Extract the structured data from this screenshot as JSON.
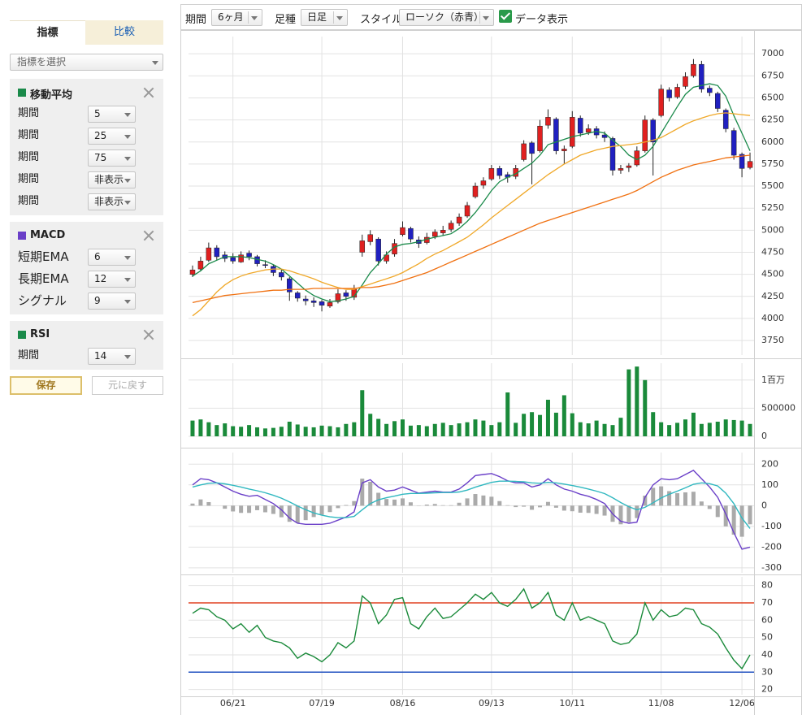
{
  "toolbar": {
    "period_label": "期間",
    "period": "6ヶ月",
    "bar_label": "足種",
    "bar": "日足",
    "style_label": "スタイル",
    "style": "ローソク（赤青）",
    "data_toggle": "データ表示"
  },
  "sidebar": {
    "tabs": [
      "指標",
      "比較"
    ],
    "select": "指標を選択",
    "sections": [
      {
        "title": "移動平均",
        "color": "#1a8a4a",
        "rows": [
          {
            "label": "期間",
            "value": 5
          },
          {
            "label": "期間",
            "value": 25
          },
          {
            "label": "期間",
            "value": 75
          },
          {
            "label": "期間",
            "value": "非表示"
          },
          {
            "label": "期間",
            "value": "非表示"
          }
        ]
      },
      {
        "title": "MACD",
        "color": "#6a3fc8",
        "rows": [
          {
            "label": "短期EMA",
            "value": 6
          },
          {
            "label": "長期EMA",
            "value": 12
          },
          {
            "label": "シグナル",
            "value": 9
          }
        ]
      },
      {
        "title": "RSI",
        "color": "#1a8a4a",
        "rows": [
          {
            "label": "期間",
            "value": 14
          }
        ]
      }
    ],
    "buttons": [
      "保存",
      "元に戻す"
    ]
  },
  "chart_data": [
    {
      "type": "candlestick",
      "up_color": "#e02020",
      "down_color": "#2020c0",
      "grid": true,
      "ylim": [
        3585,
        7195
      ],
      "yticks": [
        3750,
        4000,
        4250,
        4500,
        4750,
        5000,
        5250,
        5500,
        5750,
        6000,
        6250,
        6500,
        6750,
        7000
      ],
      "open": [
        4500,
        4560,
        4660,
        4800,
        4720,
        4690,
        4640,
        4740,
        4700,
        4610,
        4590,
        4520,
        4450,
        4290,
        4220,
        4200,
        4190,
        4140,
        4190,
        4290,
        4240,
        4750,
        4870,
        4900,
        4650,
        4730,
        4950,
        5020,
        4890,
        4860,
        4930,
        4970,
        5010,
        5080,
        5160,
        5380,
        5510,
        5580,
        5700,
        5630,
        5610,
        5800,
        5990,
        5900,
        6190,
        6260,
        5900,
        5950,
        6270,
        6110,
        6150,
        6080,
        6040,
        5680,
        5710,
        5740,
        5900,
        6250,
        6300,
        6590,
        6510,
        6630,
        6750,
        6880,
        6610,
        6550,
        6360,
        6130,
        5860,
        5710
      ],
      "high": [
        4600,
        4700,
        4860,
        4830,
        4760,
        4740,
        4760,
        4770,
        4720,
        4660,
        4610,
        4560,
        4470,
        4310,
        4260,
        4240,
        4210,
        4220,
        4330,
        4320,
        4380,
        4950,
        5000,
        4920,
        4760,
        4900,
        5100,
        5040,
        4930,
        4970,
        5010,
        5050,
        5110,
        5190,
        5320,
        5540,
        5600,
        5740,
        5730,
        5660,
        5740,
        6020,
        6010,
        6250,
        6370,
        6280,
        5960,
        6350,
        6300,
        6200,
        6180,
        6120,
        6060,
        5740,
        5760,
        5950,
        6300,
        6270,
        6650,
        6620,
        6660,
        6790,
        6940,
        6920,
        6640,
        6570,
        6380,
        6160,
        5880,
        5880
      ],
      "low": [
        4470,
        4540,
        4640,
        4660,
        4640,
        4620,
        4630,
        4660,
        4590,
        4570,
        4480,
        4430,
        4200,
        4190,
        4150,
        4130,
        4080,
        4120,
        4170,
        4200,
        4210,
        4700,
        4830,
        4600,
        4620,
        4700,
        4930,
        4860,
        4800,
        4840,
        4900,
        4940,
        4980,
        5050,
        5140,
        5360,
        5470,
        5560,
        5580,
        5540,
        5580,
        5780,
        5520,
        5880,
        6150,
        5860,
        5750,
        5930,
        6060,
        6080,
        6040,
        6000,
        5620,
        5640,
        5660,
        5720,
        5880,
        5620,
        6280,
        6460,
        6490,
        6600,
        6730,
        6560,
        6520,
        6340,
        6110,
        5800,
        5600,
        5690
      ],
      "close": [
        4550,
        4650,
        4800,
        4700,
        4680,
        4650,
        4720,
        4700,
        4620,
        4600,
        4520,
        4470,
        4300,
        4230,
        4200,
        4180,
        4150,
        4180,
        4280,
        4250,
        4330,
        4880,
        4950,
        4650,
        4720,
        4850,
        5030,
        4900,
        4850,
        4920,
        4980,
        5000,
        5080,
        5150,
        5280,
        5500,
        5560,
        5700,
        5620,
        5600,
        5700,
        5980,
        5870,
        6180,
        6280,
        5900,
        5920,
        6280,
        6100,
        6150,
        6080,
        6050,
        5680,
        5700,
        5730,
        5900,
        6250,
        6000,
        6600,
        6500,
        6620,
        6740,
        6880,
        6600,
        6560,
        6380,
        6150,
        5850,
        5700,
        5780
      ],
      "overlays": [
        {
          "color": "#1a8a4a",
          "values": [
            4480,
            4540,
            4620,
            4660,
            4700,
            4700,
            4700,
            4690,
            4670,
            4650,
            4610,
            4560,
            4480,
            4400,
            4320,
            4260,
            4220,
            4190,
            4200,
            4220,
            4250,
            4380,
            4520,
            4620,
            4730,
            4810,
            4840,
            4850,
            4870,
            4900,
            4920,
            4940,
            4960,
            5020,
            5100,
            5200,
            5320,
            5450,
            5550,
            5600,
            5640,
            5700,
            5760,
            5850,
            5970,
            6000,
            6030,
            6060,
            6080,
            6100,
            6120,
            6100,
            6020,
            5950,
            5850,
            5800,
            5850,
            5950,
            6100,
            6250,
            6400,
            6540,
            6620,
            6640,
            6660,
            6640,
            6520,
            6300,
            6100,
            5900
          ]
        },
        {
          "color": "#f0a828",
          "values": [
            4030,
            4100,
            4200,
            4300,
            4380,
            4440,
            4480,
            4510,
            4530,
            4550,
            4560,
            4560,
            4540,
            4510,
            4480,
            4450,
            4410,
            4380,
            4350,
            4330,
            4330,
            4360,
            4390,
            4420,
            4450,
            4480,
            4520,
            4570,
            4620,
            4680,
            4730,
            4770,
            4820,
            4870,
            4920,
            4990,
            5060,
            5140,
            5210,
            5280,
            5350,
            5420,
            5490,
            5560,
            5630,
            5690,
            5750,
            5800,
            5850,
            5880,
            5910,
            5930,
            5950,
            5960,
            5970,
            5980,
            6000,
            6020,
            6050,
            6100,
            6150,
            6200,
            6240,
            6270,
            6300,
            6320,
            6330,
            6320,
            6310,
            6300
          ]
        },
        {
          "color": "#f07010",
          "values": [
            4180,
            4200,
            4220,
            4240,
            4260,
            4270,
            4280,
            4290,
            4300,
            4310,
            4320,
            4320,
            4330,
            4330,
            4330,
            4340,
            4340,
            4340,
            4340,
            4340,
            4340,
            4350,
            4350,
            4360,
            4380,
            4400,
            4430,
            4460,
            4490,
            4520,
            4560,
            4600,
            4640,
            4680,
            4720,
            4760,
            4800,
            4840,
            4880,
            4920,
            4960,
            5000,
            5040,
            5080,
            5110,
            5140,
            5170,
            5200,
            5230,
            5260,
            5290,
            5320,
            5350,
            5380,
            5410,
            5450,
            5500,
            5550,
            5600,
            5640,
            5680,
            5710,
            5740,
            5760,
            5780,
            5800,
            5820,
            5830,
            5840,
            5850
          ]
        }
      ]
    },
    {
      "type": "bar",
      "color": "#1a8a3a",
      "grid": true,
      "ylim": [
        0,
        1300000
      ],
      "yticks": [
        0,
        500000,
        {
          "value": 1000000,
          "label": "1百万"
        }
      ],
      "values": [
        280000,
        300000,
        250000,
        200000,
        230000,
        180000,
        170000,
        200000,
        160000,
        140000,
        150000,
        170000,
        260000,
        210000,
        170000,
        160000,
        190000,
        180000,
        160000,
        220000,
        250000,
        820000,
        400000,
        310000,
        220000,
        270000,
        300000,
        190000,
        200000,
        180000,
        220000,
        240000,
        200000,
        230000,
        250000,
        300000,
        280000,
        200000,
        250000,
        780000,
        240000,
        400000,
        430000,
        380000,
        650000,
        420000,
        730000,
        410000,
        250000,
        230000,
        280000,
        220000,
        200000,
        330000,
        1190000,
        1240000,
        1000000,
        430000,
        250000,
        200000,
        240000,
        300000,
        420000,
        220000,
        240000,
        260000,
        300000,
        290000,
        280000,
        220000
      ]
    },
    {
      "type": "line",
      "grid": true,
      "ylim": [
        -324,
        256
      ],
      "yticks": [
        -300,
        -200,
        -100,
        0,
        100,
        200
      ],
      "histogram": {
        "color": "#aaaaaa",
        "values": [
          10,
          30,
          17,
          0,
          -15,
          -28,
          -35,
          -35,
          -22,
          -32,
          -40,
          -56,
          -78,
          -83,
          -70,
          -55,
          -44,
          -31,
          -12,
          3,
          22,
          130,
          115,
          62,
          32,
          29,
          35,
          16,
          1,
          5,
          8,
          2,
          2,
          14,
          35,
          56,
          49,
          43,
          22,
          2,
          -7,
          -5,
          -20,
          -8,
          18,
          -10,
          -24,
          -27,
          -34,
          -35,
          -40,
          -48,
          -78,
          -90,
          -80,
          -60,
          48,
          86,
          93,
          70,
          60,
          64,
          67,
          20,
          -16,
          -55,
          -100,
          -140,
          -150,
          -90
        ]
      },
      "series": [
        {
          "color": "#6a3fc8",
          "values": [
            100,
            130,
            125,
            110,
            90,
            70,
            55,
            45,
            50,
            30,
            10,
            -20,
            -60,
            -85,
            -90,
            -90,
            -90,
            -85,
            -70,
            -55,
            -30,
            110,
            125,
            90,
            70,
            75,
            90,
            75,
            60,
            65,
            70,
            65,
            65,
            80,
            110,
            145,
            150,
            155,
            140,
            120,
            110,
            110,
            90,
            100,
            130,
            100,
            80,
            70,
            55,
            45,
            30,
            10,
            -40,
            -75,
            -85,
            -80,
            40,
            100,
            130,
            125,
            130,
            150,
            170,
            130,
            90,
            40,
            -40,
            -130,
            -210,
            -200
          ]
        },
        {
          "color": "#30b8c0",
          "values": [
            90,
            100,
            108,
            110,
            105,
            98,
            90,
            80,
            72,
            62,
            50,
            36,
            18,
            -2,
            -20,
            -35,
            -46,
            -54,
            -58,
            -58,
            -52,
            -20,
            10,
            28,
            38,
            46,
            55,
            59,
            59,
            60,
            62,
            63,
            63,
            66,
            75,
            89,
            101,
            112,
            118,
            118,
            117,
            115,
            110,
            108,
            112,
            110,
            104,
            97,
            89,
            80,
            70,
            58,
            38,
            15,
            -5,
            -20,
            -8,
            14,
            37,
            55,
            70,
            86,
            103,
            110,
            106,
            95,
            60,
            10,
            -60,
            -110
          ]
        }
      ]
    },
    {
      "type": "line",
      "grid": true,
      "ylim": [
        17,
        85
      ],
      "yticks": [
        20,
        30,
        40,
        50,
        60,
        70,
        80
      ],
      "hlines": [
        {
          "value": 70,
          "color": "#e04020"
        },
        {
          "value": 30,
          "color": "#2050c0"
        }
      ],
      "series": [
        {
          "color": "#1a8a3a",
          "values": [
            64,
            67,
            66,
            62,
            60,
            55,
            58,
            53,
            57,
            50,
            48,
            47,
            44,
            38,
            41,
            39,
            36,
            40,
            47,
            44,
            48,
            74,
            70,
            58,
            63,
            72,
            73,
            58,
            55,
            62,
            67,
            61,
            62,
            66,
            70,
            75,
            72,
            76,
            70,
            68,
            72,
            78,
            67,
            70,
            76,
            63,
            60,
            70,
            60,
            62,
            60,
            58,
            48,
            46,
            47,
            52,
            70,
            60,
            66,
            62,
            63,
            67,
            66,
            58,
            56,
            52,
            44,
            37,
            32,
            40
          ]
        }
      ],
      "categories": [
        null,
        null,
        null,
        null,
        null,
        "06/21",
        null,
        null,
        null,
        null,
        null,
        null,
        null,
        null,
        null,
        null,
        "07/19",
        null,
        null,
        null,
        null,
        null,
        null,
        null,
        null,
        null,
        "08/16",
        null,
        null,
        null,
        null,
        null,
        null,
        null,
        null,
        null,
        null,
        "09/13",
        null,
        null,
        null,
        null,
        null,
        null,
        null,
        null,
        null,
        "10/11",
        null,
        null,
        null,
        null,
        null,
        null,
        null,
        null,
        null,
        null,
        "11/08",
        null,
        null,
        null,
        null,
        null,
        null,
        null,
        null,
        null,
        "12/06",
        null
      ]
    }
  ]
}
